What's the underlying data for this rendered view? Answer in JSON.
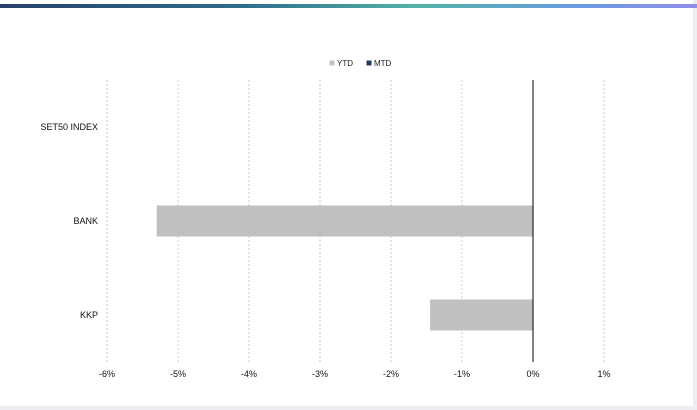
{
  "chart_data": {
    "type": "bar",
    "orientation": "horizontal",
    "categories": [
      "SET50 INDEX",
      "BANK",
      "KKP"
    ],
    "series": [
      {
        "name": "YTD",
        "values": [
          0,
          -5.3,
          -1.45
        ],
        "color": "#c0c0c0"
      },
      {
        "name": "MTD",
        "values": [
          0,
          0,
          0
        ],
        "color": "#1f3864"
      }
    ],
    "xlim": [
      -6,
      1
    ],
    "x_ticks": [
      "-6%",
      "-5%",
      "-4%",
      "-3%",
      "-2%",
      "-1%",
      "0%",
      "1%"
    ],
    "grid": true,
    "legend_position": "top",
    "title": "",
    "xlabel": "",
    "ylabel": ""
  },
  "colors": {
    "gridline": "#9fc3e6",
    "zero_axis": "#000000"
  }
}
